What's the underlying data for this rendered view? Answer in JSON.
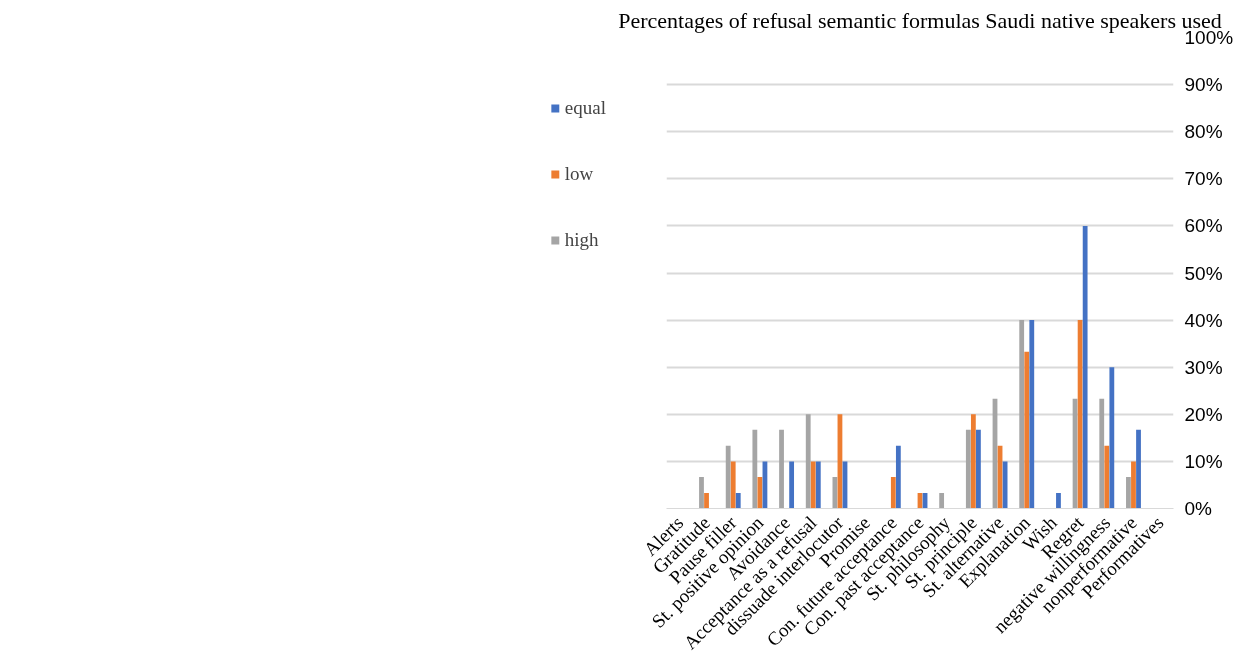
{
  "chart_data": {
    "type": "bar",
    "title": "Percentages of refusal semantic formulas Saudi native speakers used",
    "categories": [
      "Alerts",
      "Gratitude",
      "Pause filler",
      "St. positive opinion",
      "Avoidance",
      "Acceptance as a refusal",
      "dissuade interlocutor",
      "Promise",
      "Con. future acceptance",
      "Con. past acceptance",
      "St. philosophy",
      "St. principle",
      "St. alternative",
      "Explanation",
      "Wish",
      "Regret",
      "negative willingness",
      "nonperformative",
      "Performatives"
    ],
    "series": [
      {
        "name": "high",
        "color": "#a5a5a5",
        "values": [
          0,
          6.7,
          13.3,
          16.7,
          16.7,
          20,
          6.7,
          0,
          0,
          0,
          3.3,
          16.7,
          23.3,
          40,
          0,
          23.3,
          23.3,
          6.7,
          0
        ]
      },
      {
        "name": "low",
        "color": "#ed7d31",
        "values": [
          0,
          3.3,
          10,
          6.7,
          0,
          10,
          20,
          0,
          6.7,
          3.3,
          0,
          20,
          13.3,
          33.3,
          0,
          40,
          13.3,
          10,
          0
        ]
      },
      {
        "name": "equal",
        "color": "#4472c4",
        "values": [
          0,
          0,
          3.3,
          10,
          10,
          10,
          10,
          0,
          13.3,
          3.3,
          0,
          16.7,
          10,
          40,
          3.3,
          60,
          30,
          16.7,
          0
        ]
      }
    ],
    "ylim": [
      0,
      100
    ],
    "yticks": [
      {
        "value": 0,
        "label": "0%"
      },
      {
        "value": 10,
        "label": "10%"
      },
      {
        "value": 20,
        "label": "20%"
      },
      {
        "value": 30,
        "label": "30%"
      },
      {
        "value": 40,
        "label": "40%"
      },
      {
        "value": 50,
        "label": "50%"
      },
      {
        "value": 60,
        "label": "60%"
      },
      {
        "value": 70,
        "label": "70%"
      },
      {
        "value": 80,
        "label": "80%"
      },
      {
        "value": 90,
        "label": "90%"
      },
      {
        "value": 100,
        "label": "100%"
      }
    ],
    "grid": "y",
    "legend": "left"
  }
}
